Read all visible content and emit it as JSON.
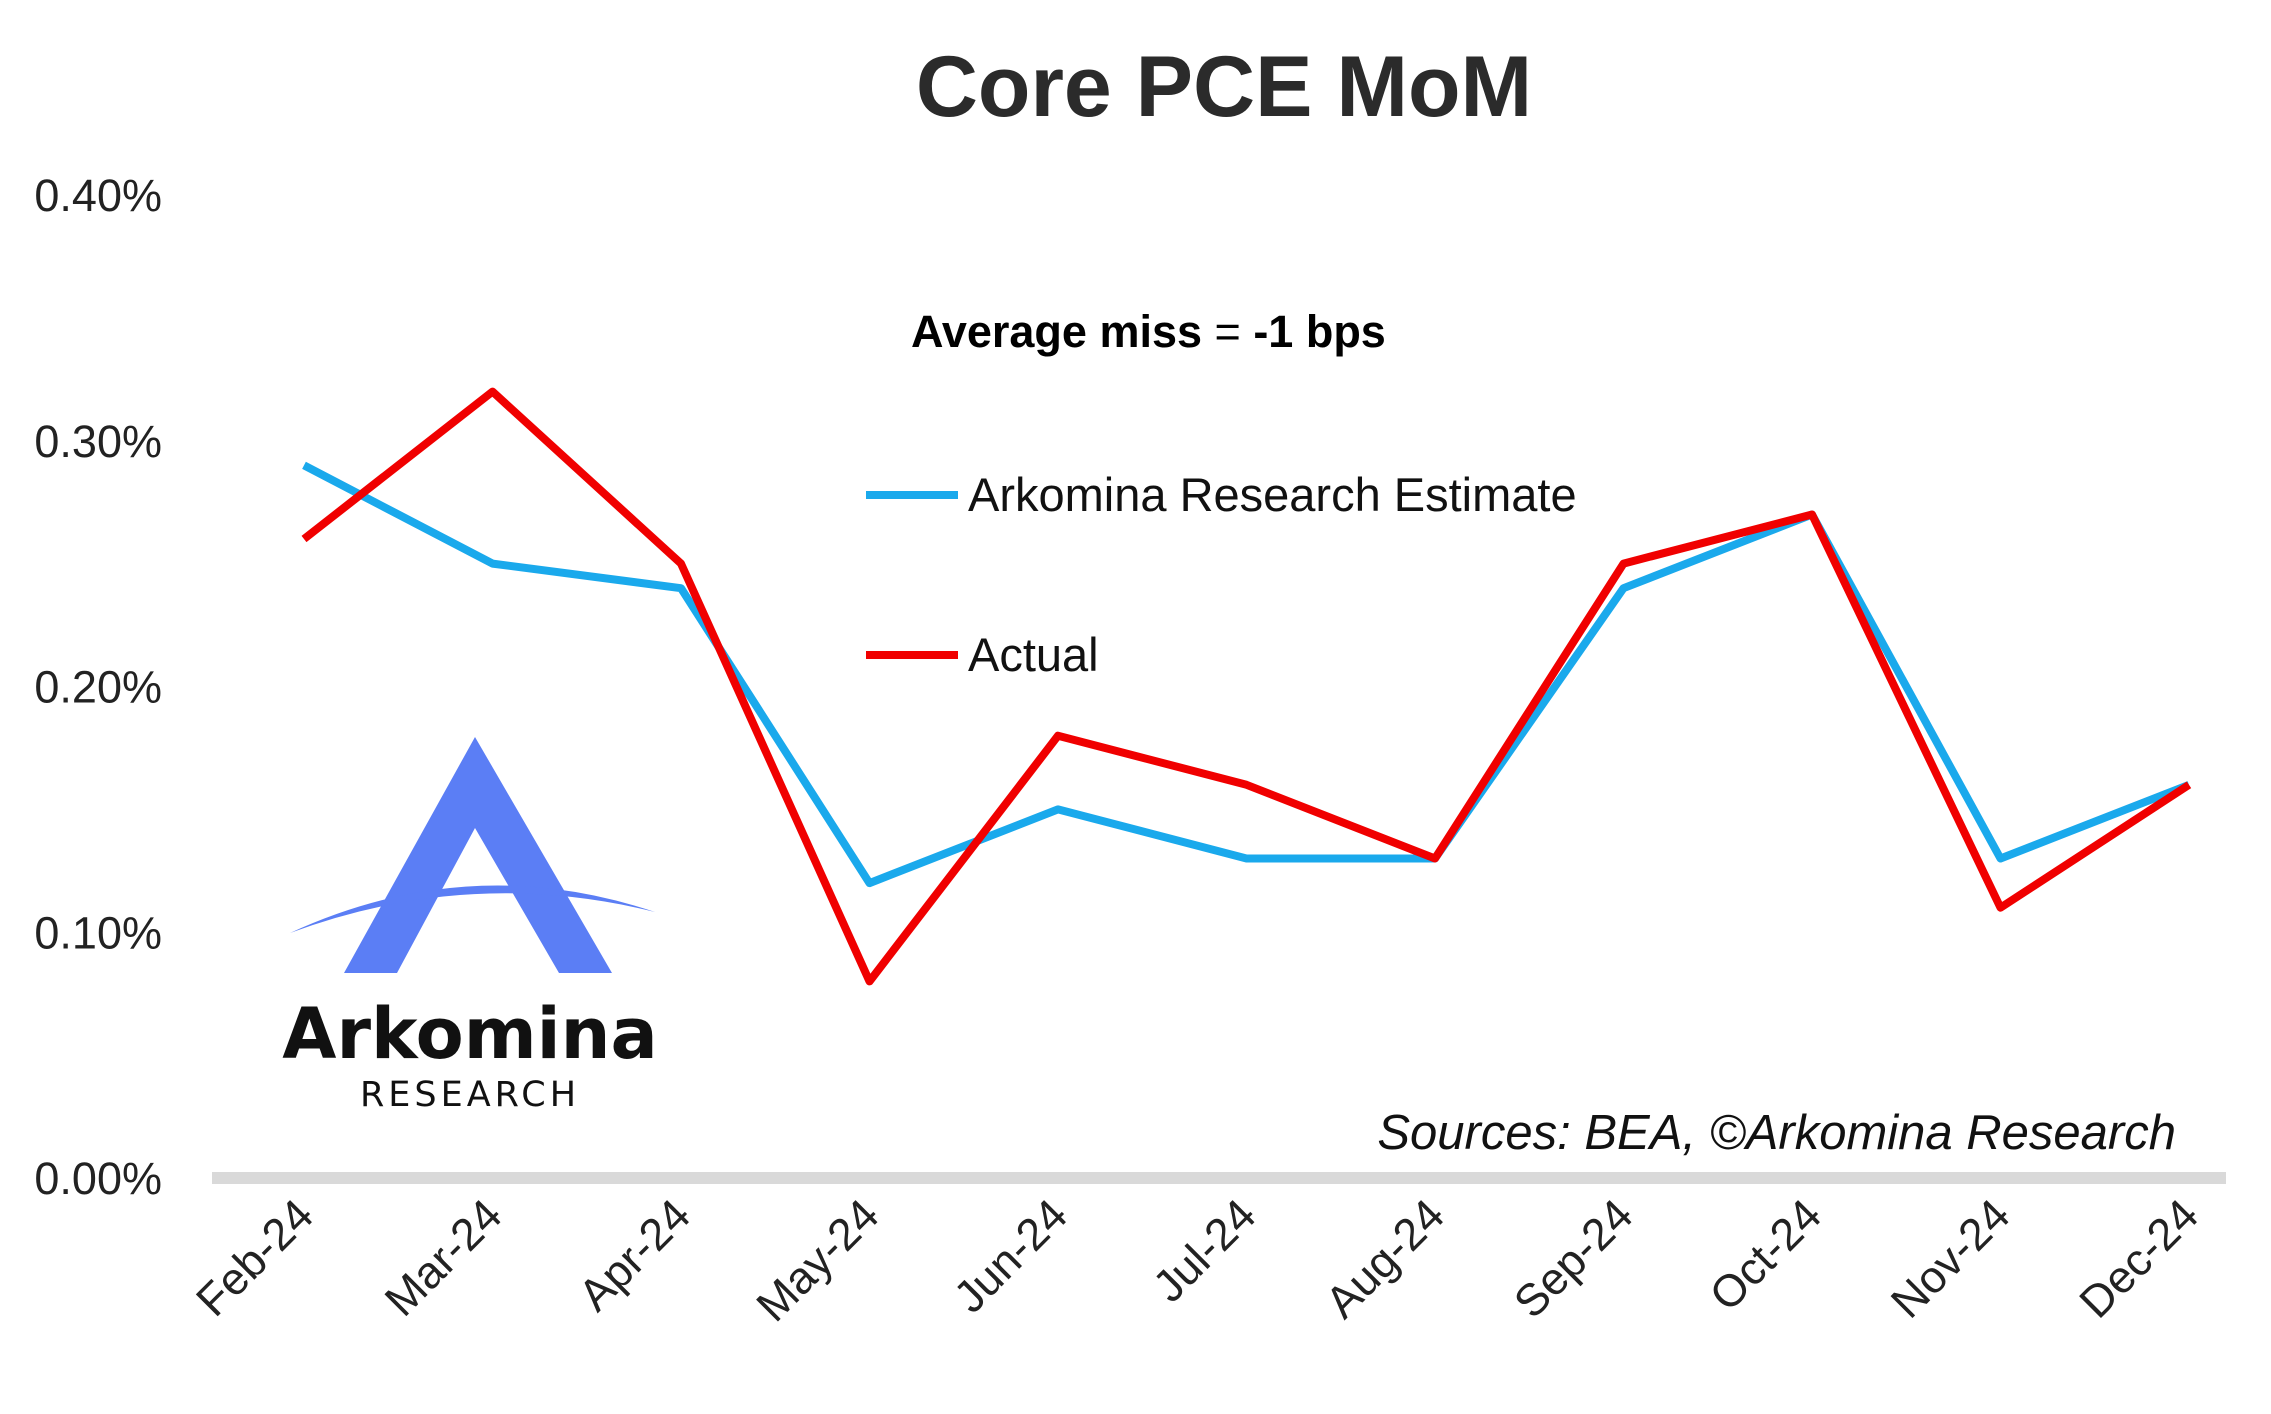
{
  "chart_data": {
    "type": "line",
    "title": "Core PCE MoM",
    "xlabel": "",
    "ylabel": "",
    "categories": [
      "Feb-24",
      "Mar-24",
      "Apr-24",
      "May-24",
      "Jun-24",
      "Jul-24",
      "Aug-24",
      "Sep-24",
      "Oct-24",
      "Nov-24",
      "Dec-24"
    ],
    "series": [
      {
        "name": "Arkomina Research Estimate",
        "color": "#1aa9ec",
        "values": [
          0.29,
          0.25,
          0.24,
          0.12,
          0.15,
          0.13,
          0.13,
          0.24,
          0.27,
          0.13,
          0.16
        ]
      },
      {
        "name": "Actual",
        "color": "#f00000",
        "values": [
          0.26,
          0.32,
          0.25,
          0.08,
          0.18,
          0.16,
          0.13,
          0.25,
          0.27,
          0.11,
          0.16
        ]
      }
    ],
    "ylim": [
      0,
      0.4
    ],
    "yticks": [
      0.0,
      0.1,
      0.2,
      0.3,
      0.4
    ],
    "ytick_labels": [
      "0.00%",
      "0.10%",
      "0.20%",
      "0.30%",
      "0.40%"
    ],
    "grid": false,
    "legend_position": "upper-center",
    "annotation": {
      "bold_left": "Average miss",
      "middle": " = ",
      "bold_right": "-1 bps"
    },
    "source": "Sources: BEA, ©Arkomina Research"
  },
  "logo": {
    "word": "Arkomina",
    "sub": "RESEARCH",
    "color": "#5b7ef5"
  }
}
